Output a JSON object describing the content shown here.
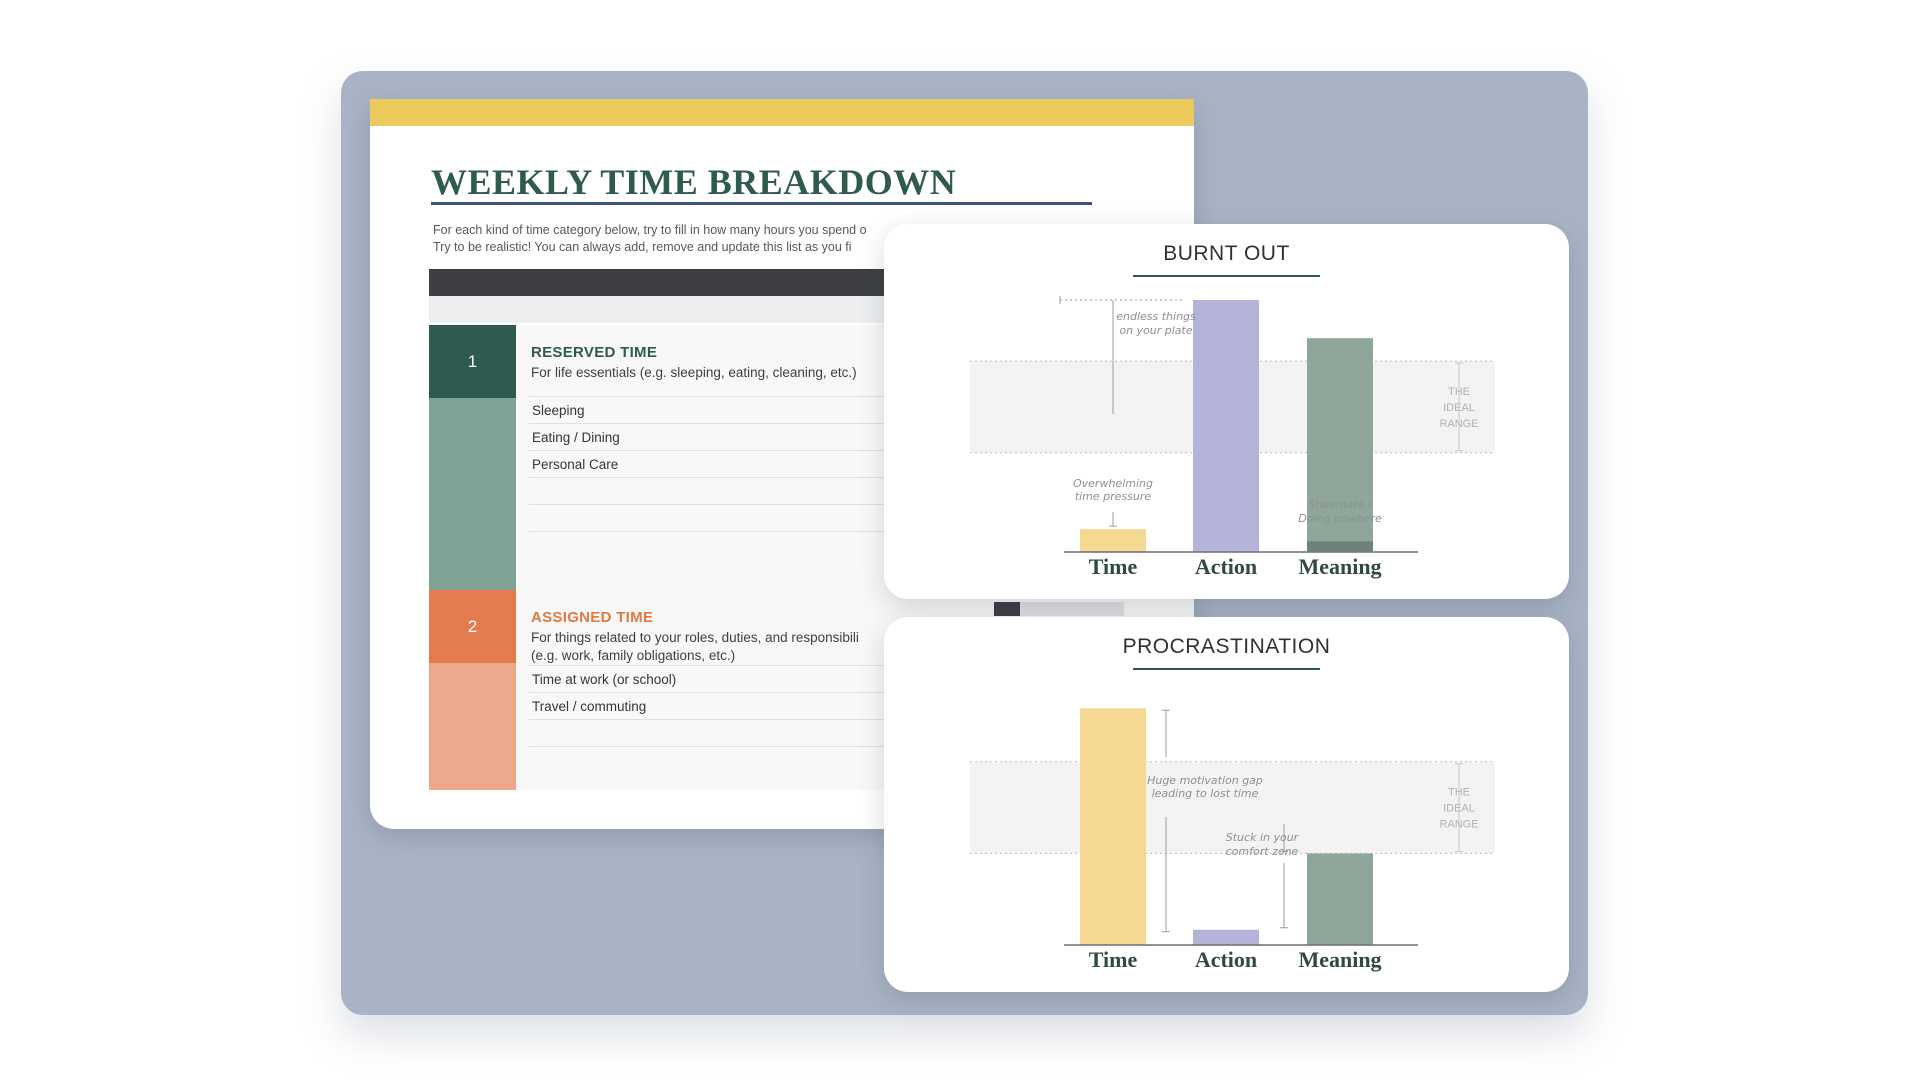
{
  "colors": {
    "backdrop": "#a8b4c5",
    "yellow": "#ebc95c",
    "title_green": "#2f5a4f",
    "title_rule_blue": "#3d4f8a",
    "dark_bar": "#3d3f42",
    "sec1_dark": "#2f5a4f",
    "sec1_light": "#7fa295",
    "sec2_dark": "#e37b4e",
    "sec2_light": "#eda78a",
    "sec2_title": "#e07a3e",
    "bar_time": "#f5d992",
    "bar_action": "#b4b4da",
    "bar_meaning": "#8fa69b",
    "bar_meaning_dark": "#6f8277",
    "card_rule": "#2f5a4f"
  },
  "worksheet": {
    "title": "WEEKLY TIME BREAKDOWN",
    "intro_lines": [
      "For each kind of time category below, try to fill in how many hours you spend o",
      "Try to be realistic!  You can always add, remove and update this list as you fi"
    ],
    "sections": [
      {
        "number": "1",
        "title": "RESERVED TIME",
        "description": [
          "For life essentials (e.g. sleeping, eating, cleaning, etc.)"
        ],
        "rows": [
          "Sleeping",
          "Eating / Dining",
          "Personal Care",
          "",
          "",
          ""
        ]
      },
      {
        "number": "2",
        "title": "ASSIGNED TIME",
        "description": [
          "For things related to your roles, duties, and responsibili",
          "(e.g. work, family obligations, etc.)"
        ],
        "rows": [
          "Time at work  (or school)",
          "Travel / commuting",
          "",
          ""
        ]
      }
    ]
  },
  "charts": [
    {
      "title": "BURNT OUT",
      "ideal_range_label": [
        "THE",
        "IDEAL",
        "RANGE"
      ],
      "annotations": [
        [
          "endless things",
          "on your plate"
        ],
        [
          "Overwhelming",
          "time pressure"
        ],
        [
          "Stalemate /",
          "Doing nowhere"
        ]
      ]
    },
    {
      "title": "PROCRASTINATION",
      "ideal_range_label": [
        "THE",
        "IDEAL",
        "RANGE"
      ],
      "annotations": [
        [
          "Huge motivation gap",
          "leading to lost time"
        ],
        [
          "Stuck in your",
          "comfort zone"
        ]
      ]
    }
  ],
  "chart_data": [
    {
      "type": "bar",
      "title": "BURNT OUT",
      "categories": [
        "Time",
        "Action",
        "Meaning"
      ],
      "values": [
        1.5,
        16.5,
        14
      ],
      "ideal_range": [
        6.5,
        12.5
      ],
      "ylim": [
        0,
        16.5
      ],
      "colors": [
        "#f5d992",
        "#b4b4da",
        "#8fa69b"
      ]
    },
    {
      "type": "bar",
      "title": "PROCRASTINATION",
      "categories": [
        "Time",
        "Action",
        "Meaning"
      ],
      "values": [
        15.5,
        1,
        6
      ],
      "ideal_range": [
        6,
        12
      ],
      "ylim": [
        0,
        16.5
      ],
      "colors": [
        "#f5d992",
        "#b4b4da",
        "#8fa69b"
      ]
    }
  ]
}
